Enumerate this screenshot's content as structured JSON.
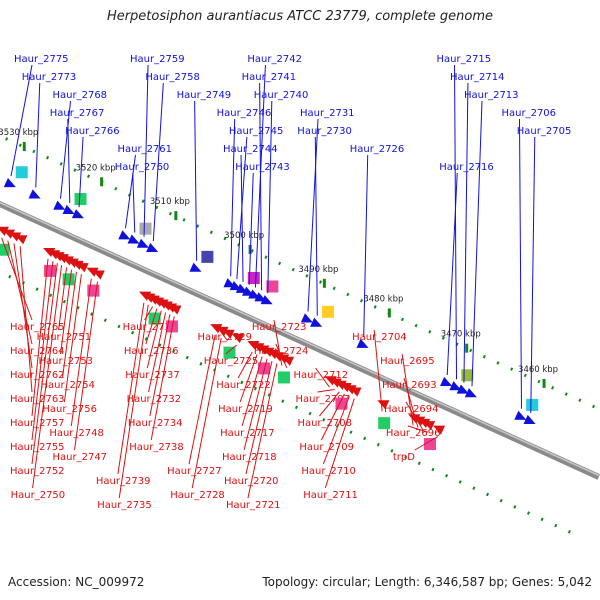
{
  "title": "Herpetosiphon aurantiacus ATCC 23779, complete genome",
  "footer": {
    "accession": "Accession: NC_009972",
    "summary": "Topology: circular; Length: 6,346,587 bp; Genes: 5,042"
  },
  "colors": {
    "forward": "#1111dd",
    "reverse": "#dd1111",
    "backbone": "#8a8a8a",
    "tick": "#118811"
  },
  "kbp_ticks": [
    {
      "text": "3530 kbp",
      "pos": 0.03
    },
    {
      "text": "3520 kbp",
      "pos": 0.155
    },
    {
      "text": "3510 kbp",
      "pos": 0.275
    },
    {
      "text": "3500 kbp",
      "pos": 0.395
    },
    {
      "text": "3490 kbp",
      "pos": 0.515
    },
    {
      "text": "3480 kbp",
      "pos": 0.62
    },
    {
      "text": "3470 kbp",
      "pos": 0.745
    },
    {
      "text": "3460 kbp",
      "pos": 0.87
    }
  ],
  "forward_genes": [
    {
      "name": "Haur_2775",
      "pos": 0.03
    },
    {
      "name": "Haur_2773",
      "pos": 0.07
    },
    {
      "name": "Haur_2768",
      "pos": 0.11
    },
    {
      "name": "Haur_2767",
      "pos": 0.125
    },
    {
      "name": "Haur_2766",
      "pos": 0.14
    },
    {
      "name": "Haur_2761",
      "pos": 0.215
    },
    {
      "name": "Haur_2760",
      "pos": 0.23
    },
    {
      "name": "Haur_2759",
      "pos": 0.245
    },
    {
      "name": "Haur_2758",
      "pos": 0.26
    },
    {
      "name": "Haur_2749",
      "pos": 0.33
    },
    {
      "name": "Haur_2746",
      "pos": 0.385
    },
    {
      "name": "Haur_2745",
      "pos": 0.395
    },
    {
      "name": "Haur_2744",
      "pos": 0.405
    },
    {
      "name": "Haur_2743",
      "pos": 0.415
    },
    {
      "name": "Haur_2742",
      "pos": 0.425
    },
    {
      "name": "Haur_2741",
      "pos": 0.435
    },
    {
      "name": "Haur_2740",
      "pos": 0.445
    },
    {
      "name": "Haur_2731",
      "pos": 0.51
    },
    {
      "name": "Haur_2730",
      "pos": 0.525
    },
    {
      "name": "Haur_2726",
      "pos": 0.6
    },
    {
      "name": "Haur_2716",
      "pos": 0.735
    },
    {
      "name": "Haur_2715",
      "pos": 0.75
    },
    {
      "name": "Haur_2714",
      "pos": 0.762
    },
    {
      "name": "Haur_2713",
      "pos": 0.775
    },
    {
      "name": "Haur_2706",
      "pos": 0.855
    },
    {
      "name": "Haur_2705",
      "pos": 0.87
    }
  ],
  "reverse_genes": [
    {
      "name": "Haur_2765",
      "pos": 0.055
    },
    {
      "name": "Haur_2764",
      "pos": 0.065
    },
    {
      "name": "Haur_2762",
      "pos": 0.075
    },
    {
      "name": "Haur_2763",
      "pos": 0.085
    },
    {
      "name": "Haur_2757",
      "pos": 0.13
    },
    {
      "name": "Haur_2755",
      "pos": 0.138
    },
    {
      "name": "Haur_2752",
      "pos": 0.145
    },
    {
      "name": "Haur_2750",
      "pos": 0.152
    },
    {
      "name": "Haur_2751",
      "pos": 0.16
    },
    {
      "name": "Haur_2753",
      "pos": 0.168
    },
    {
      "name": "Haur_2754",
      "pos": 0.176
    },
    {
      "name": "Haur_2756",
      "pos": 0.184
    },
    {
      "name": "Haur_2748",
      "pos": 0.2
    },
    {
      "name": "Haur_2747",
      "pos": 0.21
    },
    {
      "name": "Haur_2739",
      "pos": 0.285
    },
    {
      "name": "Haur_2735",
      "pos": 0.292
    },
    {
      "name": "Haur_2733",
      "pos": 0.299
    },
    {
      "name": "Haur_2736",
      "pos": 0.306
    },
    {
      "name": "Haur_2737",
      "pos": 0.313
    },
    {
      "name": "Haur_2732",
      "pos": 0.32
    },
    {
      "name": "Haur_2734",
      "pos": 0.327
    },
    {
      "name": "Haur_2738",
      "pos": 0.334
    },
    {
      "name": "Haur_2727",
      "pos": 0.4
    },
    {
      "name": "Haur_2728",
      "pos": 0.41
    },
    {
      "name": "Haur_2729",
      "pos": 0.42
    },
    {
      "name": "Haur_2725",
      "pos": 0.435
    },
    {
      "name": "Haur_2722",
      "pos": 0.46
    },
    {
      "name": "Haur_2719",
      "pos": 0.468
    },
    {
      "name": "Haur_2717",
      "pos": 0.476
    },
    {
      "name": "Haur_2718",
      "pos": 0.484
    },
    {
      "name": "Haur_2720",
      "pos": 0.492
    },
    {
      "name": "Haur_2721",
      "pos": 0.5
    },
    {
      "name": "Haur_2723",
      "pos": 0.508
    },
    {
      "name": "Haur_2724",
      "pos": 0.516
    },
    {
      "name": "Haur_2712",
      "pos": 0.585
    },
    {
      "name": "Haur_2707",
      "pos": 0.593
    },
    {
      "name": "Haur_2708",
      "pos": 0.601
    },
    {
      "name": "Haur_2709",
      "pos": 0.609
    },
    {
      "name": "Haur_2710",
      "pos": 0.617
    },
    {
      "name": "Haur_2711",
      "pos": 0.625
    },
    {
      "name": "Haur_2704",
      "pos": 0.67
    },
    {
      "name": "Haur_2695",
      "pos": 0.72
    },
    {
      "name": "Haur_2693",
      "pos": 0.728
    },
    {
      "name": "Haur_2694",
      "pos": 0.736
    },
    {
      "name": "Haur_2696",
      "pos": 0.744
    },
    {
      "name": "trpD",
      "pos": 0.76
    }
  ]
}
